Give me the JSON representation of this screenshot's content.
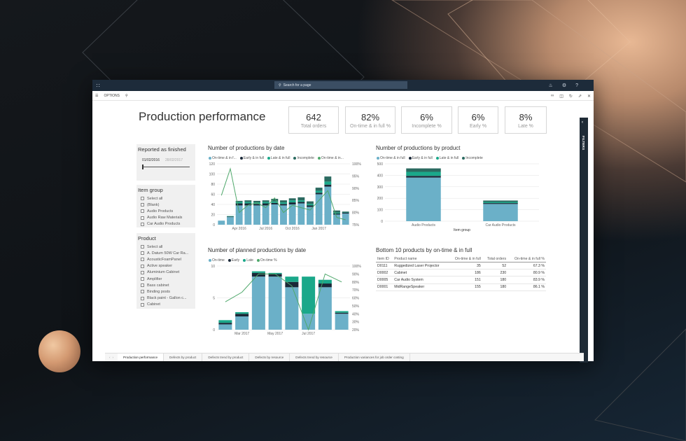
{
  "colors": {
    "teal": "#6bb0c8",
    "navy": "#1a2838",
    "green": "#1aa88a",
    "darkgreen": "#2b6a60",
    "line": "#4fa86b",
    "grid": "#e2e2e2"
  },
  "topbar": {
    "search_placeholder": "Search for a page",
    "icons": [
      "bell-icon",
      "gear-icon",
      "help-icon"
    ],
    "help": "?"
  },
  "cmdbar": {
    "options_label": "OPTIONS"
  },
  "filters": {
    "label": "FILTERS"
  },
  "report": {
    "title": "Production performance"
  },
  "kpis": [
    {
      "value": "642",
      "label": "Total orders"
    },
    {
      "value": "82%",
      "label": "On-time & in full %"
    },
    {
      "value": "6%",
      "label": "Incomplete %"
    },
    {
      "value": "6%",
      "label": "Early %"
    },
    {
      "value": "8%",
      "label": "Late %"
    }
  ],
  "slicers": {
    "reported": {
      "title": "Reported as finished",
      "from": "01/02/2016",
      "to": "28/02/2017"
    },
    "item_group": {
      "title": "Item group",
      "items": [
        "Select all",
        "(Blank)",
        "Audio Products",
        "Audio Raw Materials",
        "Car Audio Products"
      ]
    },
    "product": {
      "title": "Product",
      "items": [
        "Select all",
        "A. Datum 50W Car Ra...",
        "AcousticFoamPanel",
        "Active speaker",
        "Aluminium Cabinet",
        "Amplifier",
        "Bass cabinet",
        "Binding posts",
        "Black paint - Gallon c...",
        "Cabinet"
      ]
    }
  },
  "charts": {
    "by_date": {
      "title": "Number of productions by date",
      "legend": [
        "On-time & in f...",
        "Early & in full",
        "Late & in full",
        "Incomplete",
        "On-time & in..."
      ]
    },
    "by_product": {
      "title": "Number of productions by product",
      "legend": [
        "On-time & in full",
        "Early & in full",
        "Late & in full",
        "Incomplete"
      ]
    },
    "planned": {
      "title": "Number of planned productions by date",
      "legend": [
        "On-time",
        "Early",
        "Late",
        "On-time %"
      ]
    }
  },
  "chart_data": [
    {
      "type": "bar",
      "title": "Number of productions by date",
      "ylim": [
        0,
        120
      ],
      "y2lim": [
        75,
        100
      ],
      "yticks": [
        "0",
        "20",
        "40",
        "60",
        "80",
        "100",
        "120"
      ],
      "y2ticks": [
        "75%",
        "80%",
        "85%",
        "90%",
        "95%",
        "100%"
      ],
      "xticks": [
        "Apr 2016",
        "Jul 2016",
        "Oct 2016",
        "Jan 2017"
      ],
      "tick_index": [
        2,
        5,
        8,
        11
      ],
      "series": [
        {
          "name": "On-time & in f...",
          "values": [
            8,
            15,
            38,
            38,
            38,
            38,
            40,
            38,
            40,
            42,
            35,
            60,
            75,
            20,
            22
          ]
        },
        {
          "name": "Early & in full",
          "values": [
            0,
            1,
            4,
            4,
            3,
            4,
            3,
            3,
            4,
            3,
            3,
            3,
            4,
            2,
            2
          ]
        },
        {
          "name": "Late & in full",
          "values": [
            0,
            1,
            3,
            3,
            3,
            3,
            3,
            3,
            4,
            3,
            3,
            4,
            6,
            2,
            1
          ]
        },
        {
          "name": "Incomplete",
          "values": [
            0,
            0,
            2,
            3,
            3,
            3,
            5,
            4,
            4,
            6,
            5,
            6,
            10,
            4,
            1
          ]
        }
      ],
      "line": {
        "name": "On-time & in...",
        "values": [
          87,
          98,
          80,
          83,
          84,
          82,
          86,
          80,
          83,
          82,
          81,
          85,
          89,
          78,
          77
        ]
      }
    },
    {
      "type": "bar",
      "title": "Number of productions by product",
      "ylim": [
        0,
        500
      ],
      "yticks": [
        "0",
        "100",
        "200",
        "300",
        "400",
        "500"
      ],
      "categories": [
        "Audio Products",
        "Car Audio Products"
      ],
      "xlabel": "Item group",
      "series": [
        {
          "name": "On-time & in full",
          "values": [
            380,
            150
          ]
        },
        {
          "name": "Early & in full",
          "values": [
            15,
            8
          ]
        },
        {
          "name": "Late & in full",
          "values": [
            35,
            10
          ]
        },
        {
          "name": "Incomplete",
          "values": [
            30,
            12
          ]
        }
      ]
    },
    {
      "type": "bar",
      "title": "Number of planned productions by date",
      "ylim": [
        0,
        12
      ],
      "y2lim": [
        20,
        100
      ],
      "yticks": [
        "0",
        "5",
        "10"
      ],
      "y2ticks": [
        "20%",
        "30%",
        "40%",
        "50%",
        "60%",
        "70%",
        "80%",
        "90%",
        "100%"
      ],
      "xticks": [
        "Mar 2017",
        "May 2017",
        "Jul 2017"
      ],
      "tick_index": [
        1,
        3,
        5
      ],
      "series": [
        {
          "name": "On-time",
          "values": [
            1,
            2.5,
            10,
            10,
            8,
            3,
            8,
            3
          ]
        },
        {
          "name": "Early",
          "values": [
            0.3,
            0.5,
            0.7,
            0.5,
            1,
            0,
            0.7,
            0.2
          ]
        },
        {
          "name": "Late",
          "values": [
            0.5,
            0.3,
            0.3,
            0.2,
            1,
            7,
            0.7,
            0.3
          ]
        }
      ],
      "line": {
        "name": "On-time %",
        "values": [
          55,
          67,
          90,
          90,
          75,
          20,
          90,
          80
        ]
      }
    }
  ],
  "bottom_table": {
    "title": "Bottom 10 products by on-time & in full",
    "columns": [
      "Item ID",
      "Product name",
      "On-time & in full",
      "Total orders",
      "On-time & in full %"
    ],
    "rows": [
      [
        "D0111",
        "Ruggedized Laser Projector",
        "35",
        "52",
        "67.3 %"
      ],
      [
        "D0002",
        "Cabinet",
        "186",
        "230",
        "80.9 %"
      ],
      [
        "D0005",
        "Car Audio System",
        "151",
        "180",
        "83.9 %"
      ],
      [
        "D0001",
        "MidRangeSpeaker",
        "155",
        "180",
        "86.1 %"
      ]
    ]
  },
  "tabs": [
    "Production performance",
    "Defects by product",
    "Defects trend by product",
    "Defects by resource",
    "Defects trend by resource",
    "Production variances for job order costing"
  ]
}
